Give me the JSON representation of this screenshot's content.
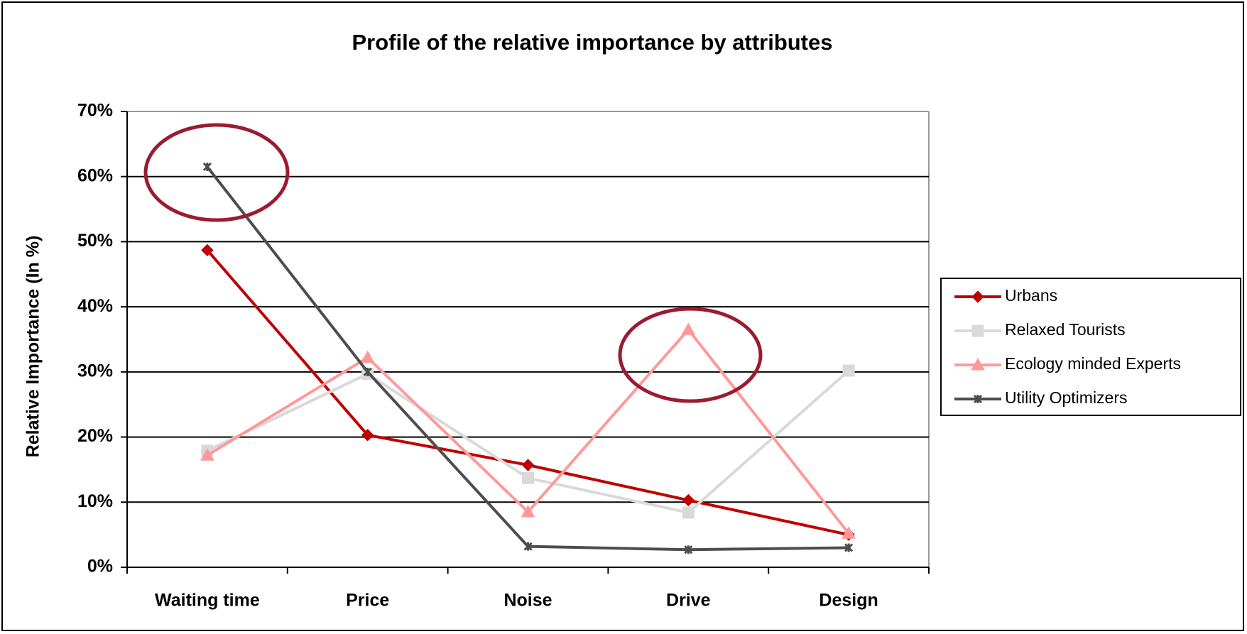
{
  "chart_data": {
    "type": "line",
    "title": "Profile of the relative importance by attributes",
    "y_label": "Relative Importance (In %)",
    "categories": [
      "Waiting time",
      "Price",
      "Noise",
      "Drive",
      "Design"
    ],
    "series": [
      {
        "name": "Urbans",
        "color": "#c00000",
        "marker": "diamond",
        "values": [
          48.7,
          20.3,
          15.7,
          10.3,
          5
        ]
      },
      {
        "name": "Relaxed Tourists",
        "color": "#d9d9d9",
        "marker": "square",
        "values": [
          17.9,
          29.7,
          13.7,
          8.4,
          30.2
        ]
      },
      {
        "name": "Ecology minded Experts",
        "color": "#ff9999",
        "marker": "triangle",
        "values": [
          17.2,
          32.2,
          8.5,
          36.5,
          5.2
        ]
      },
      {
        "name": "Utility Optimizers",
        "color": "#4d4d4d",
        "marker": "star",
        "values": [
          61.5,
          30,
          3.2,
          2.7,
          3
        ]
      }
    ],
    "ylim": [
      0,
      70
    ],
    "yticks": [
      {
        "value": 0,
        "label": "0%"
      },
      {
        "value": 10,
        "label": "10%"
      },
      {
        "value": 20,
        "label": "20%"
      },
      {
        "value": 30,
        "label": "30%"
      },
      {
        "value": 40,
        "label": "40%"
      },
      {
        "value": 50,
        "label": "50%"
      },
      {
        "value": 60,
        "label": "60%"
      },
      {
        "value": 70,
        "label": "70%"
      }
    ],
    "grid": true,
    "legend": "right"
  }
}
